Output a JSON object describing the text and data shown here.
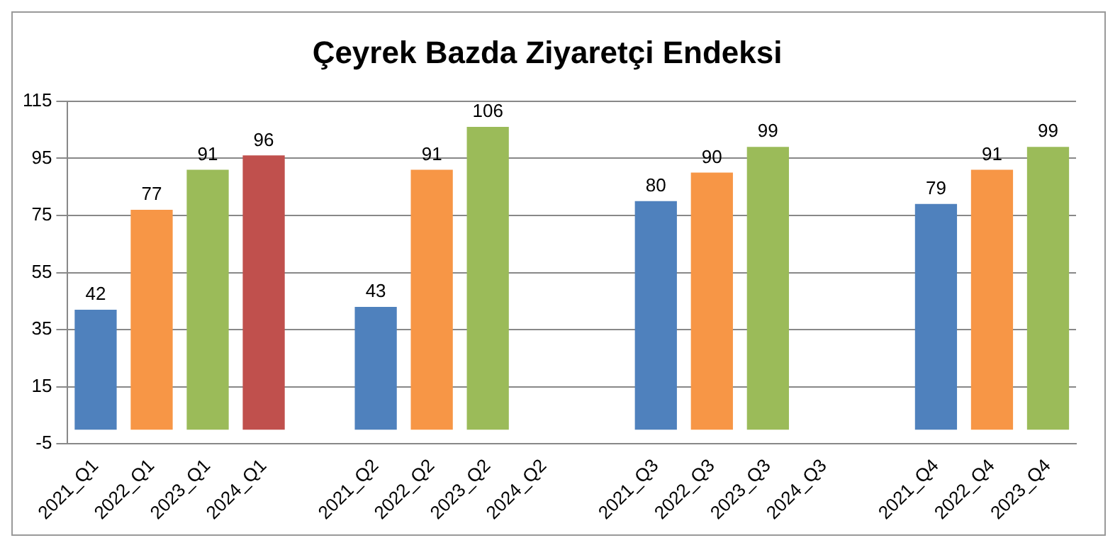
{
  "chart_data": {
    "type": "bar",
    "title": "Çeyrek Bazda Ziyaretçi Endeksi",
    "categories": [
      "2021_Q1",
      "2022_Q1",
      "2023_Q1",
      "2024_Q1",
      null,
      "2021_Q2",
      "2022_Q2",
      "2023_Q2",
      "2024_Q2",
      null,
      "2021_Q3",
      "2022_Q3",
      "2023_Q3",
      "2024_Q3",
      null,
      "2021_Q4",
      "2022_Q4",
      "2023_Q4"
    ],
    "values": [
      42,
      77,
      91,
      96,
      null,
      43,
      91,
      106,
      null,
      null,
      80,
      90,
      99,
      null,
      null,
      79,
      91,
      99
    ],
    "colors": [
      "#4f81bd",
      "#f79646",
      "#9bbb59",
      "#c0504d",
      "#4f81bd",
      "#4f81bd",
      "#f79646",
      "#9bbb59",
      "#c0504d",
      "#4f81bd",
      "#4f81bd",
      "#f79646",
      "#9bbb59",
      "#c0504d",
      "#4f81bd",
      "#4f81bd",
      "#f79646",
      "#9bbb59"
    ],
    "ylim": [
      -5,
      115
    ],
    "yticks": [
      -5,
      15,
      35,
      55,
      75,
      95,
      115
    ],
    "grid": "y",
    "data_labels": true,
    "legend": false
  }
}
